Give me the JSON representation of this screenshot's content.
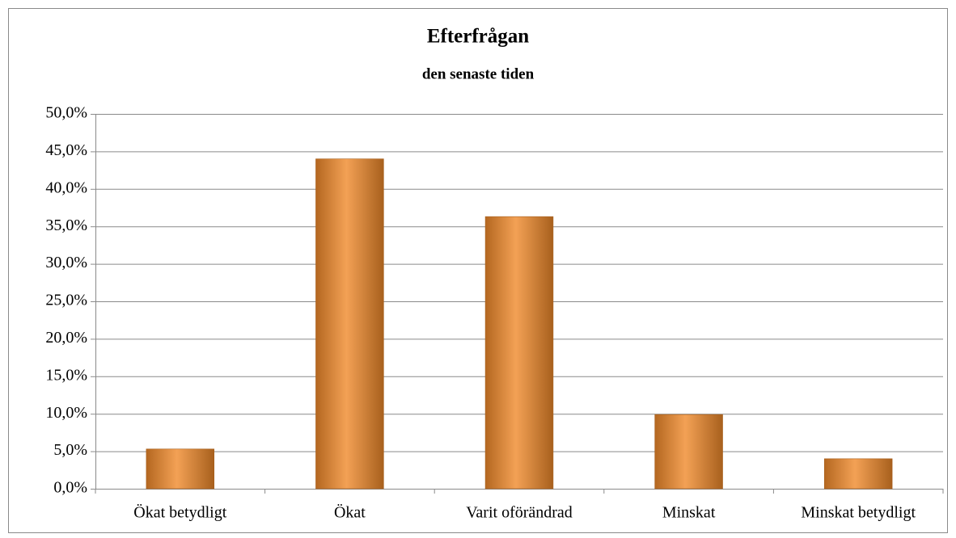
{
  "chart_data": {
    "type": "bar",
    "title": "Efterfrågan",
    "subtitle": "den senaste tiden",
    "categories": [
      "Ökat betydligt",
      "Ökat",
      "Varit oförändrad",
      "Minskat",
      "Minskat betydligt"
    ],
    "values": [
      5.3,
      44.0,
      36.3,
      9.9,
      4.0
    ],
    "color": "#f0892a",
    "ylim": [
      0,
      50
    ],
    "yticks": [
      {
        "value": 0,
        "label": "0,0%"
      },
      {
        "value": 5,
        "label": "5,0%"
      },
      {
        "value": 10,
        "label": "10,0%"
      },
      {
        "value": 15,
        "label": "15,0%"
      },
      {
        "value": 20,
        "label": "20,0%"
      },
      {
        "value": 25,
        "label": "25,0%"
      },
      {
        "value": 30,
        "label": "30,0%"
      },
      {
        "value": 35,
        "label": "35,0%"
      },
      {
        "value": 40,
        "label": "40,0%"
      },
      {
        "value": 45,
        "label": "45,0%"
      },
      {
        "value": 50,
        "label": "50,0%"
      }
    ],
    "grid": true
  }
}
